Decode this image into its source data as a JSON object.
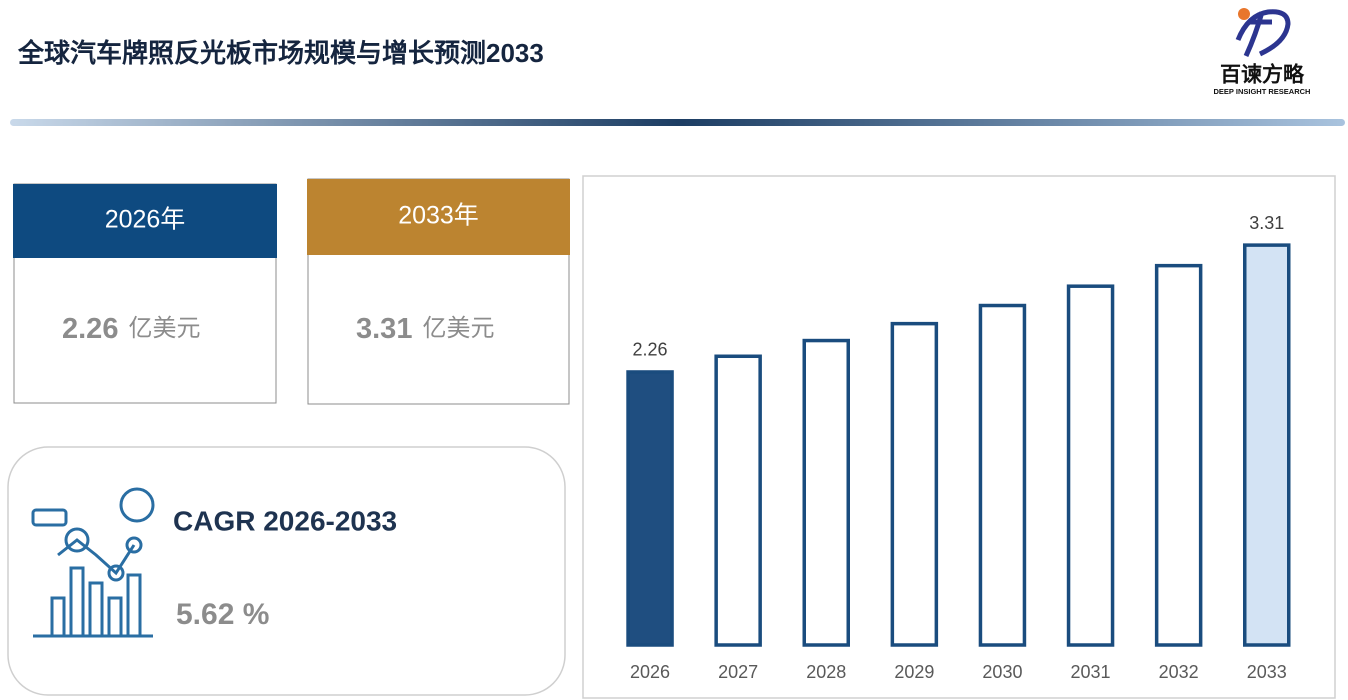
{
  "header": {
    "title": "全球汽车牌照反光板市场规模与增长预测2033",
    "logo_name": "百谏方略",
    "logo_tagline": "DEEP INSIGHT RESEARCH"
  },
  "cards": [
    {
      "year": "2026年",
      "value": 2.26,
      "unit": "亿美元",
      "color": "#0e4a80"
    },
    {
      "year": "2033年",
      "value": 3.31,
      "unit": "亿美元",
      "color": "#bc8430"
    }
  ],
  "cagr": {
    "label": "CAGR 2026-2033",
    "value": 5.62,
    "unit": "%"
  },
  "chart_data": {
    "type": "bar",
    "categories": [
      "2026",
      "2027",
      "2028",
      "2029",
      "2030",
      "2031",
      "2032",
      "2033"
    ],
    "values": [
      2.26,
      2.39,
      2.52,
      2.66,
      2.81,
      2.97,
      3.14,
      3.31
    ],
    "colors": [
      "#1f4e80",
      "#ffffff",
      "#ffffff",
      "#ffffff",
      "#ffffff",
      "#ffffff",
      "#ffffff",
      "#d3e3f4"
    ],
    "border_color": "#1a4c7e",
    "labeled": [
      0,
      7
    ],
    "ylim": [
      0,
      3.7
    ]
  }
}
